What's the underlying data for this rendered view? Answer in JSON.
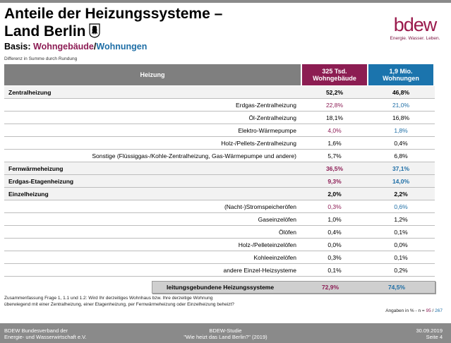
{
  "title_line1": "Anteile der Heizungssysteme –",
  "title_line2": "Land Berlin",
  "subtitle": {
    "prefix": "Basis: ",
    "part1": "Wohngebäude",
    "sep": "/",
    "part2": "Wohnungen"
  },
  "note": "Differenz in Summe durch Rundung",
  "logo": {
    "word": "bdew",
    "tagline": "Energie. Wasser. Leben."
  },
  "table": {
    "header": {
      "label": "Heizung",
      "col1_line1": "325 Tsd.",
      "col1_line2": "Wohngebäude",
      "col2_line1": "1,9 Mio.",
      "col2_line2": "Wohnungen"
    },
    "rows": [
      {
        "label": "Zentralheizung",
        "v1": "52,2%",
        "v2": "46,8%"
      },
      {
        "label": "Erdgas-Zentralheizung",
        "v1": "22,8%",
        "v2": "21,0%"
      },
      {
        "label": "Öl-Zentralheizung",
        "v1": "18,1%",
        "v2": "16,8%"
      },
      {
        "label": "Elektro-Wärmepumpe",
        "v1": "4,0%",
        "v2": "1,8%"
      },
      {
        "label": "Holz-/Pellets-Zentralheizung",
        "v1": "1,6%",
        "v2": "0,4%"
      },
      {
        "label": "Sonstige (Flüssiggas-/Kohle-Zentralheizung, Gas-Wärmepumpe und andere)",
        "v1": "5,7%",
        "v2": "6,8%"
      },
      {
        "label": "Fernwärmeheizung",
        "v1": "36,5%",
        "v2": "37,1%"
      },
      {
        "label": "Erdgas-Etagenheizung",
        "v1": "9,3%",
        "v2": "14,0%"
      },
      {
        "label": "Einzelheizung",
        "v1": "2,0%",
        "v2": "2,2%"
      },
      {
        "label": "(Nacht-)Stromspeicheröfen",
        "v1": "0,3%",
        "v2": "0,6%"
      },
      {
        "label": "Gaseinzelöfen",
        "v1": "1,0%",
        "v2": "1,2%"
      },
      {
        "label": "Ölöfen",
        "v1": "0,4%",
        "v2": "0,1%"
      },
      {
        "label": "Holz-/Pelleteinzelöfen",
        "v1": "0,0%",
        "v2": "0,0%"
      },
      {
        "label": "Kohleeinzelöfen",
        "v1": "0,3%",
        "v2": "0,1%"
      },
      {
        "label": "andere Einzel-Heizsysteme",
        "v1": "0,1%",
        "v2": "0,2%"
      }
    ],
    "summary": {
      "label": "leitungsgebundene Heizungssysteme",
      "v1": "72,9%",
      "v2": "74,5%"
    }
  },
  "footnote_line1": "Zusammenfassung Frage 1, 1.1 und 1.2: Wird Ihr derzeitiges Wohnhaus bzw. Ihre derzeitige Wohnung",
  "footnote_line2": "überwiegend mit einer Zentralheizung, einer Etagenheizung, per Fernwärmeheizung oder Einzelheizung beheizt?",
  "angaben": {
    "prefix": "Angaben in % - n = ",
    "n1": "95",
    "sep": " / ",
    "n2": "267"
  },
  "footer": {
    "left_line1": "BDEW Bundesverband der",
    "left_line2": "Energie- und Wasserwirtschaft e.V.",
    "center_line1": "BDEW-Studie",
    "center_line2": "\"Wie heizt das Land Berlin?\" (2019)",
    "right_line1": "30.09.2019",
    "right_line2": "Seite 4"
  },
  "colors": {
    "purple": "#8d1d55",
    "blue": "#1e6ea6",
    "header_gray": "#7f7f7f",
    "footer_gray": "#8a8a8a",
    "logo": "#9a1a4c"
  },
  "icons": [
    "berlin-bear-icon"
  ]
}
